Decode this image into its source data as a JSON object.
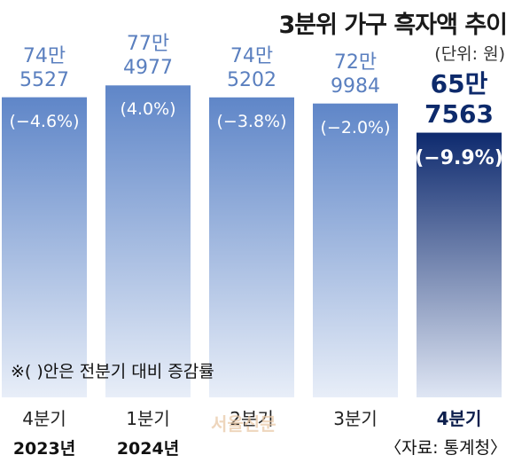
{
  "chart_data": {
    "type": "bar",
    "title": "3분위 가구 흑자액 추이",
    "unit_note": "(단위: 원)",
    "footnote": "※( )안은 전분기 대비 증감률",
    "source": "〈자료: 통계청〉",
    "watermark": "서울신문",
    "categories": [
      "4분기",
      "1분기",
      "2분기",
      "3분기",
      "4분기"
    ],
    "year_labels": [
      "2023년",
      "2024년",
      "",
      "",
      ""
    ],
    "values": [
      745527,
      774977,
      745202,
      729984,
      657563
    ],
    "value_labels_line1": [
      "74만",
      "77만",
      "74만",
      "72만",
      "65만"
    ],
    "value_labels_line2": [
      "5527",
      "4977",
      "5202",
      "9984",
      "7563"
    ],
    "change_labels": [
      "(−4.6%)",
      "(4.0%)",
      "(−3.8%)",
      "(−2.0%)",
      "(−9.9%)"
    ],
    "highlight_index": 4,
    "colors": {
      "bar_top": "#5f86c8",
      "bar_bottom": "#e8eef8",
      "highlight_top": "#0e2a6e",
      "highlight_bottom": "#dfe6f4",
      "value_text": "#5a7fbf",
      "highlight_text": "#0d2a6b"
    },
    "legend": "none",
    "grid": false
  }
}
